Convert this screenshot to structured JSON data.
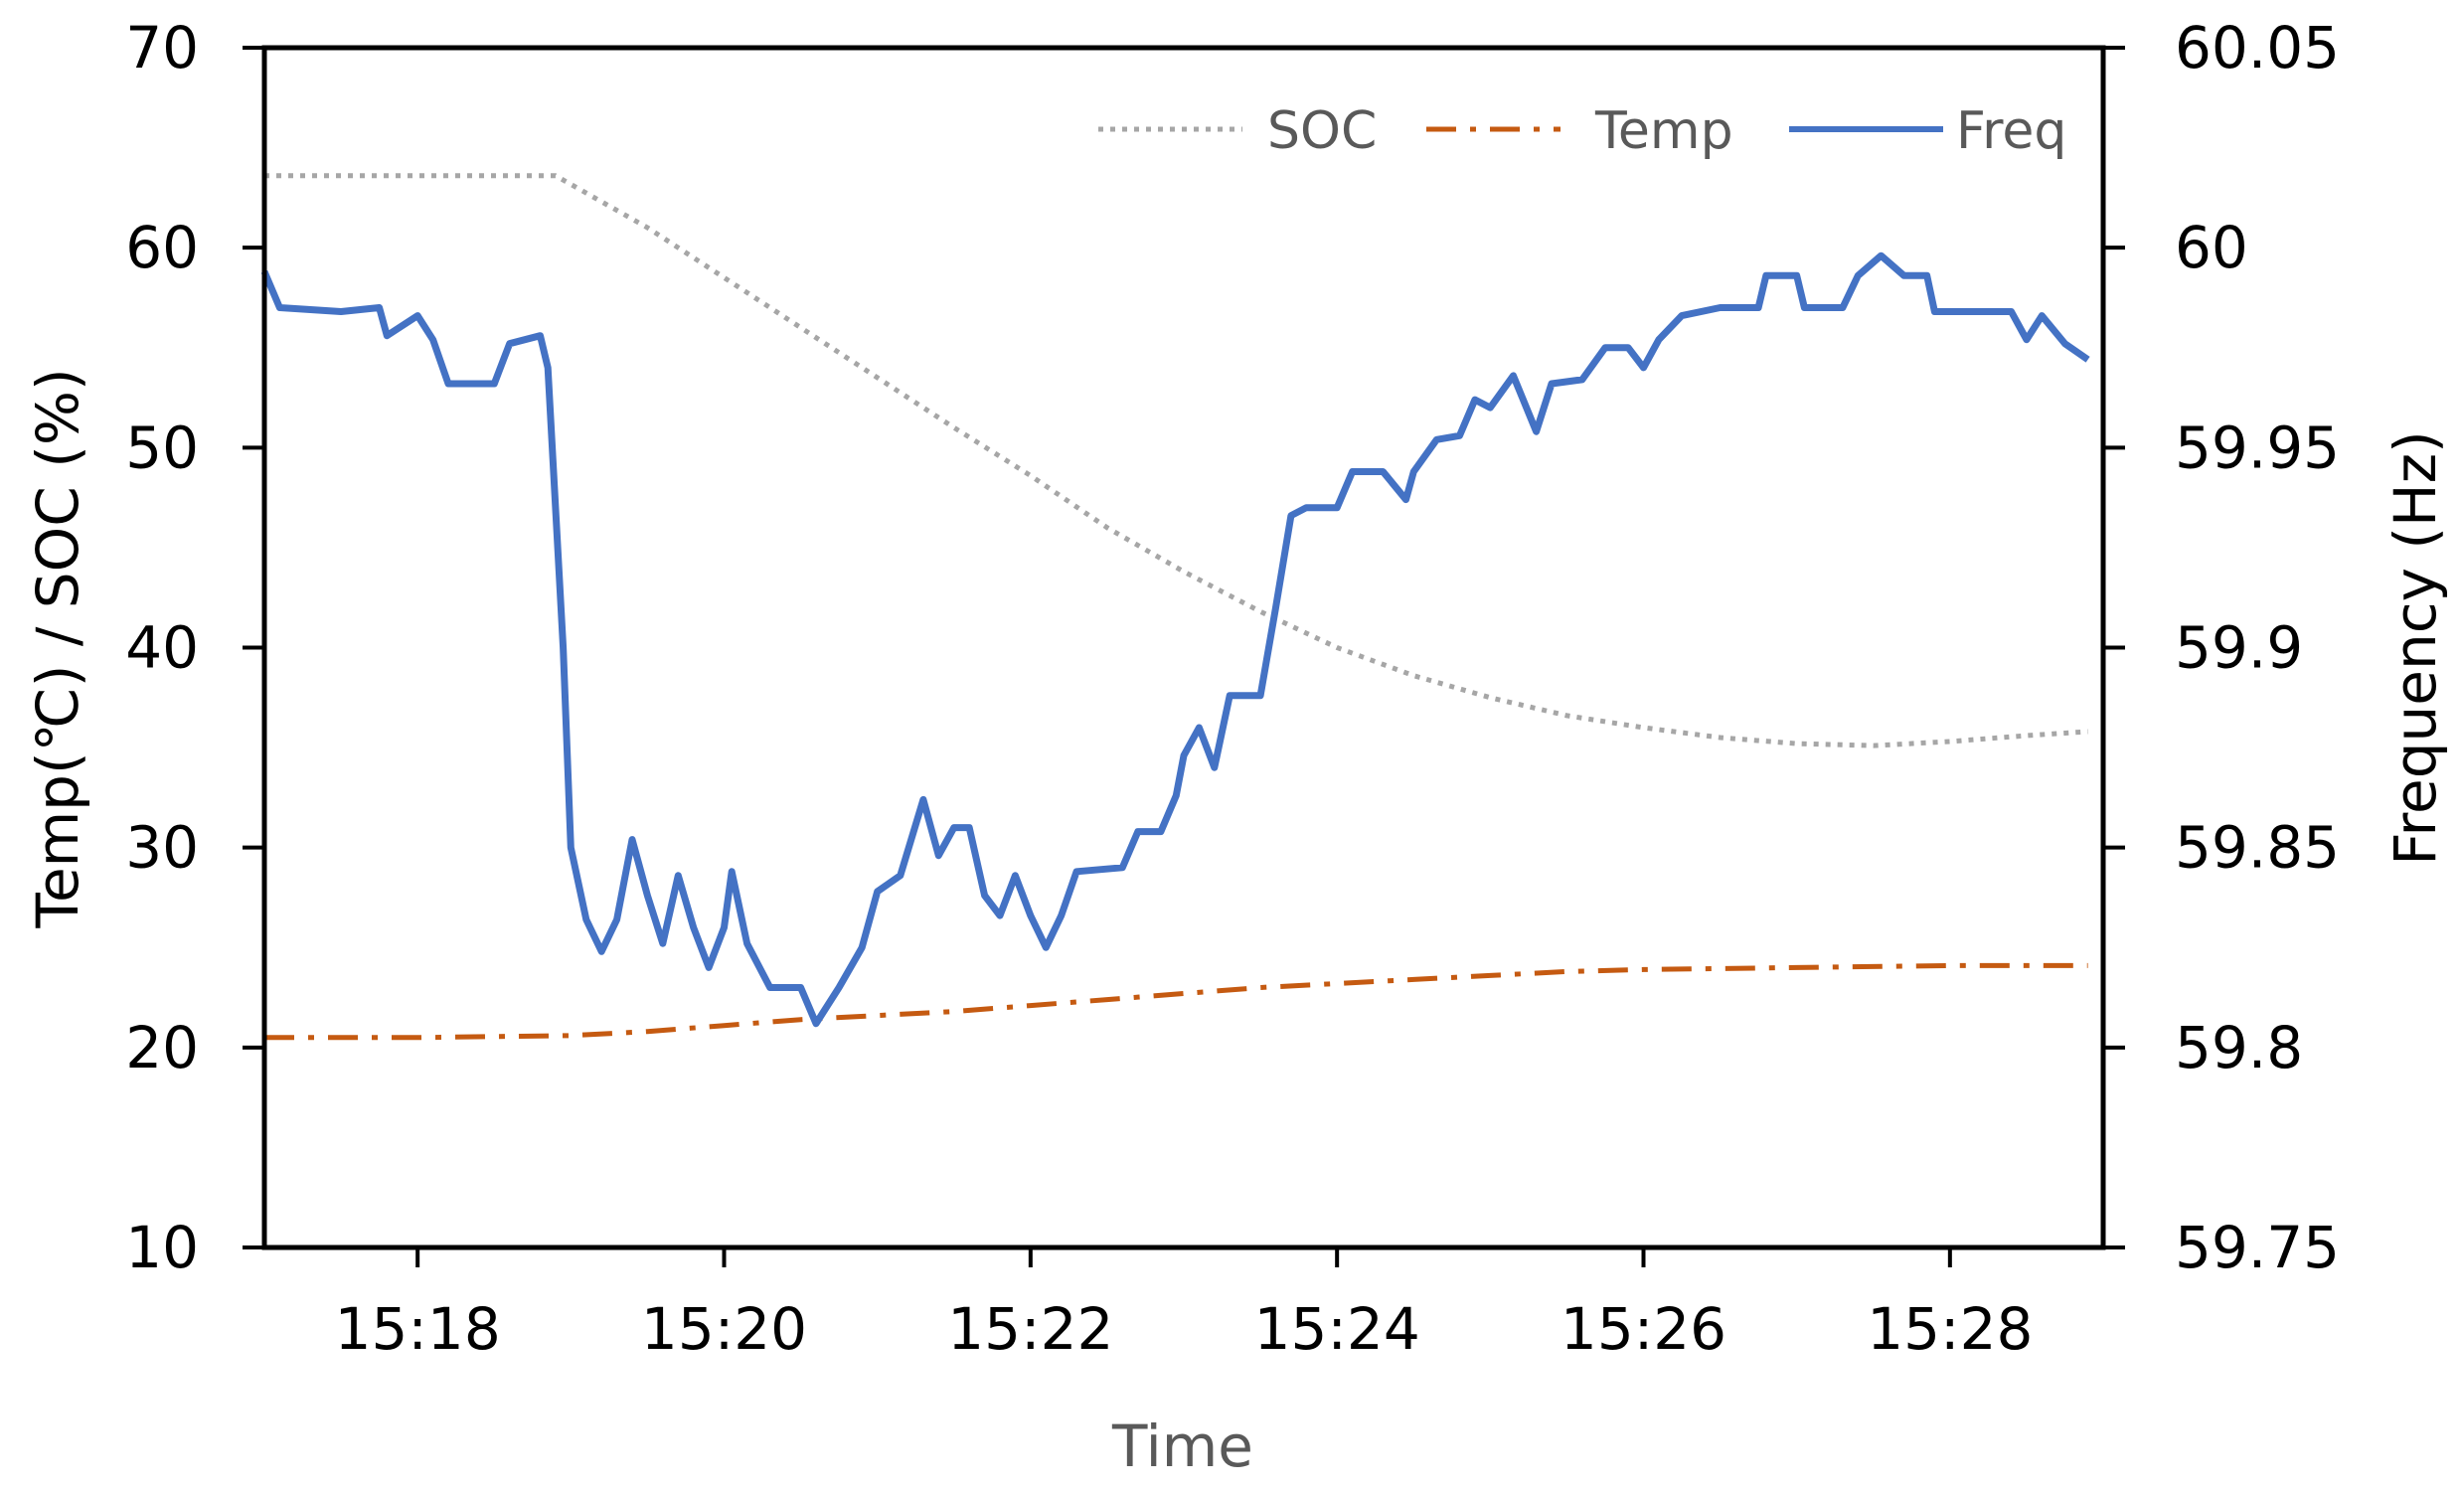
{
  "chart_data": {
    "type": "line",
    "xlabel": "Time",
    "ylabel": "Temp(℃) / SOC (%)",
    "y2label": "Frequency (Hz)",
    "x_range": [
      "15:17",
      "15:29"
    ],
    "x_ticks": [
      "15:18",
      "15:20",
      "15:22",
      "15:24",
      "15:26",
      "15:28"
    ],
    "ylim": [
      10,
      70
    ],
    "y_ticks": [
      "10",
      "20",
      "30",
      "40",
      "50",
      "60",
      "70"
    ],
    "y2lim": [
      59.75,
      60.05
    ],
    "y2_ticks": [
      "59.75",
      "59.8",
      "59.85",
      "59.9",
      "59.95",
      "60",
      "60.05"
    ],
    "grid": false,
    "legend_position": "top-right",
    "colors": {
      "SOC": "#a6a6a6",
      "Temp": "#c55a11",
      "Freq": "#4472c4"
    },
    "series": [
      {
        "name": "SOC",
        "axis": "left",
        "style": "dotted",
        "points": [
          [
            "15:17",
            63.6
          ],
          [
            "15:18",
            63.6
          ],
          [
            "15:18.9",
            63.6
          ],
          [
            "15:19.5",
            61.0
          ],
          [
            "15:20",
            58.5
          ],
          [
            "15:20.5",
            56.0
          ],
          [
            "15:21",
            53.5
          ],
          [
            "15:21.5",
            51.0
          ],
          [
            "15:22",
            48.6
          ],
          [
            "15:22.5",
            46.0
          ],
          [
            "15:23",
            43.8
          ],
          [
            "15:23.5",
            41.8
          ],
          [
            "15:24",
            40.0
          ],
          [
            "15:24.5",
            38.6
          ],
          [
            "15:25",
            37.5
          ],
          [
            "15:25.5",
            36.6
          ],
          [
            "15:26",
            36.0
          ],
          [
            "15:26.5",
            35.5
          ],
          [
            "15:27",
            35.2
          ],
          [
            "15:27.5",
            35.1
          ],
          [
            "15:28",
            35.3
          ],
          [
            "15:28.5",
            35.6
          ],
          [
            "15:28.9",
            35.8
          ]
        ]
      },
      {
        "name": "Temp",
        "axis": "left",
        "style": "dash-dot",
        "points": [
          [
            "15:17",
            20.5
          ],
          [
            "15:18",
            20.5
          ],
          [
            "15:19",
            20.6
          ],
          [
            "15:19.5",
            20.8
          ],
          [
            "15:20",
            21.1
          ],
          [
            "15:20.5",
            21.4
          ],
          [
            "15:21",
            21.6
          ],
          [
            "15:21.5",
            21.8
          ],
          [
            "15:22",
            22.1
          ],
          [
            "15:22.5",
            22.4
          ],
          [
            "15:23",
            22.7
          ],
          [
            "15:23.5",
            23.0
          ],
          [
            "15:24",
            23.2
          ],
          [
            "15:24.5",
            23.4
          ],
          [
            "15:25",
            23.6
          ],
          [
            "15:25.5",
            23.8
          ],
          [
            "15:26",
            23.9
          ],
          [
            "15:27",
            24.0
          ],
          [
            "15:28",
            24.1
          ],
          [
            "15:28.9",
            24.1
          ]
        ]
      },
      {
        "name": "Freq",
        "axis": "right",
        "style": "solid",
        "points": [
          [
            "15:17",
            59.994
          ],
          [
            "15:17.1",
            59.985
          ],
          [
            "15:17.5",
            59.984
          ],
          [
            "15:17.75",
            59.985
          ],
          [
            "15:17.8",
            59.978
          ],
          [
            "15:18",
            59.983
          ],
          [
            "15:18.1",
            59.977
          ],
          [
            "15:18.2",
            59.966
          ],
          [
            "15:18.5",
            59.966
          ],
          [
            "15:18.6",
            59.976
          ],
          [
            "15:18.8",
            59.978
          ],
          [
            "15:18.85",
            59.97
          ],
          [
            "15:18.95",
            59.9
          ],
          [
            "15:19",
            59.85
          ],
          [
            "15:19.1",
            59.832
          ],
          [
            "15:19.2",
            59.824
          ],
          [
            "15:19.3",
            59.832
          ],
          [
            "15:19.4",
            59.852
          ],
          [
            "15:19.5",
            59.838
          ],
          [
            "15:19.6",
            59.826
          ],
          [
            "15:19.7",
            59.843
          ],
          [
            "15:19.8",
            59.83
          ],
          [
            "15:19.9",
            59.82
          ],
          [
            "15:20",
            59.83
          ],
          [
            "15:20.05",
            59.844
          ],
          [
            "15:20.15",
            59.826
          ],
          [
            "15:20.3",
            59.815
          ],
          [
            "15:20.5",
            59.815
          ],
          [
            "15:20.6",
            59.806
          ],
          [
            "15:20.75",
            59.815
          ],
          [
            "15:20.9",
            59.825
          ],
          [
            "15:21",
            59.839
          ],
          [
            "15:21.15",
            59.843
          ],
          [
            "15:21.3",
            59.862
          ],
          [
            "15:21.4",
            59.848
          ],
          [
            "15:21.5",
            59.855
          ],
          [
            "15:21.6",
            59.855
          ],
          [
            "15:21.7",
            59.838
          ],
          [
            "15:21.8",
            59.833
          ],
          [
            "15:21.9",
            59.843
          ],
          [
            "15:22",
            59.833
          ],
          [
            "15:22.1",
            59.825
          ],
          [
            "15:22.2",
            59.833
          ],
          [
            "15:22.3",
            59.844
          ],
          [
            "15:22.6",
            59.845
          ],
          [
            "15:22.7",
            59.854
          ],
          [
            "15:22.85",
            59.854
          ],
          [
            "15:22.95",
            59.863
          ],
          [
            "15:23",
            59.873
          ],
          [
            "15:23.1",
            59.88
          ],
          [
            "15:23.2",
            59.87
          ],
          [
            "15:23.3",
            59.888
          ],
          [
            "15:23.5",
            59.888
          ],
          [
            "15:23.6",
            59.91
          ],
          [
            "15:23.7",
            59.933
          ],
          [
            "15:23.8",
            59.935
          ],
          [
            "15:24",
            59.935
          ],
          [
            "15:24.1",
            59.944
          ],
          [
            "15:24.3",
            59.944
          ],
          [
            "15:24.45",
            59.937
          ],
          [
            "15:24.5",
            59.944
          ],
          [
            "15:24.65",
            59.952
          ],
          [
            "15:24.8",
            59.953
          ],
          [
            "15:24.9",
            59.962
          ],
          [
            "15:25",
            59.96
          ],
          [
            "15:25.15",
            59.968
          ],
          [
            "15:25.3",
            59.954
          ],
          [
            "15:25.4",
            59.966
          ],
          [
            "15:25.6",
            59.967
          ],
          [
            "15:25.75",
            59.975
          ],
          [
            "15:25.9",
            59.975
          ],
          [
            "15:26",
            59.97
          ],
          [
            "15:26.1",
            59.977
          ],
          [
            "15:26.25",
            59.983
          ],
          [
            "15:26.5",
            59.985
          ],
          [
            "15:26.75",
            59.985
          ],
          [
            "15:26.8",
            59.993
          ],
          [
            "15:27",
            59.993
          ],
          [
            "15:27.05",
            59.985
          ],
          [
            "15:27.3",
            59.985
          ],
          [
            "15:27.4",
            59.993
          ],
          [
            "15:27.55",
            59.998
          ],
          [
            "15:27.7",
            59.993
          ],
          [
            "15:27.85",
            59.993
          ],
          [
            "15:27.9",
            59.984
          ],
          [
            "15:28.4",
            59.984
          ],
          [
            "15:28.5",
            59.977
          ],
          [
            "15:28.6",
            59.983
          ],
          [
            "15:28.75",
            59.976
          ],
          [
            "15:28.9",
            59.972
          ]
        ]
      }
    ]
  }
}
